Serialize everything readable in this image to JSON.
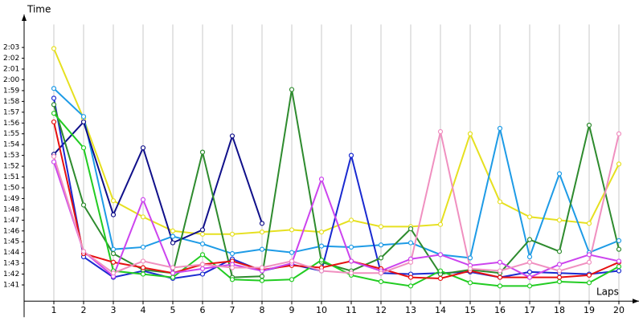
{
  "chart_data": {
    "type": "line",
    "y_label": "Time",
    "x_label": "Laps",
    "x": [
      1,
      2,
      3,
      4,
      5,
      6,
      7,
      8,
      9,
      10,
      11,
      12,
      13,
      14,
      15,
      16,
      17,
      18,
      19,
      20
    ],
    "xlim": [
      0,
      20.5
    ],
    "xticks": [
      1,
      2,
      3,
      4,
      5,
      6,
      7,
      8,
      9,
      10,
      11,
      12,
      13,
      14,
      15,
      16,
      17,
      18,
      19,
      20
    ],
    "ylim": [
      99.5,
      125.5
    ],
    "yticks": [
      {
        "value": 101,
        "label": "1:41"
      },
      {
        "value": 102,
        "label": "1:42"
      },
      {
        "value": 103,
        "label": "1:43"
      },
      {
        "value": 104,
        "label": "1:44"
      },
      {
        "value": 105,
        "label": "1:45"
      },
      {
        "value": 106,
        "label": "1:46"
      },
      {
        "value": 107,
        "label": "1:47"
      },
      {
        "value": 108,
        "label": "1:48"
      },
      {
        "value": 109,
        "label": "1:49"
      },
      {
        "value": 110,
        "label": "1:50"
      },
      {
        "value": 111,
        "label": "1:51"
      },
      {
        "value": 112,
        "label": "1:52"
      },
      {
        "value": 113,
        "label": "1:53"
      },
      {
        "value": 114,
        "label": "1:54"
      },
      {
        "value": 115,
        "label": "1:55"
      },
      {
        "value": 116,
        "label": "1:56"
      },
      {
        "value": 117,
        "label": "1:57"
      },
      {
        "value": 118,
        "label": "1:58"
      },
      {
        "value": 119,
        "label": "1:59"
      },
      {
        "value": 120,
        "label": "2:00"
      },
      {
        "value": 121,
        "label": "2:01"
      },
      {
        "value": 122,
        "label": "2:02"
      },
      {
        "value": 123,
        "label": "2:03"
      }
    ],
    "grid": "x",
    "series": [
      {
        "color": "#e6e020",
        "values": [
          122.9,
          116.4,
          108.8,
          107.3,
          106,
          105.7,
          105.7,
          105.9,
          106.1,
          105.9,
          107,
          106.4,
          106.4,
          106.6,
          115,
          108.7,
          107.3,
          107,
          106.7,
          112.2
        ]
      },
      {
        "color": "#1e9be6",
        "values": [
          119.2,
          116.6,
          104.3,
          104.5,
          105.5,
          104.8,
          103.9,
          104.3,
          104,
          104.6,
          104.5,
          104.7,
          104.9,
          103.8,
          103.5,
          115.5,
          103.6,
          111.3,
          104,
          105.1
        ]
      },
      {
        "color": "#10108a",
        "values": [
          113.1,
          116.1,
          107.5,
          113.7,
          104.9,
          106.1,
          114.8,
          106.7,
          null,
          null,
          null,
          null,
          null,
          null,
          null,
          null,
          null,
          null,
          null,
          null
        ]
      },
      {
        "color": "#1a2ad0",
        "values": [
          118.3,
          103.6,
          101.7,
          102.3,
          101.6,
          102,
          103.4,
          102.3,
          102.9,
          102.3,
          113,
          102.1,
          102,
          102.1,
          102.2,
          101.7,
          102.2,
          102.1,
          102,
          102.3
        ]
      },
      {
        "color": "#2e8b2e",
        "values": [
          117.7,
          108.4,
          103.9,
          102.4,
          102.1,
          113.3,
          101.7,
          101.8,
          119.1,
          103.1,
          102.3,
          103.5,
          106.2,
          102,
          102.4,
          102.1,
          105.2,
          104.1,
          115.8,
          104.3
        ]
      },
      {
        "color": "#22cc22",
        "values": [
          116.9,
          113.7,
          102.3,
          102,
          101.7,
          103.8,
          101.5,
          101.4,
          101.5,
          103.3,
          101.9,
          101.3,
          100.9,
          102.3,
          101.2,
          100.9,
          100.9,
          101.3,
          101.2,
          102.7
        ]
      },
      {
        "color": "#e61010",
        "values": [
          116.1,
          103.9,
          103.1,
          102.6,
          102.1,
          102.9,
          103.2,
          102.4,
          102.8,
          102.6,
          103.2,
          102.5,
          101.7,
          101.6,
          102.3,
          101.7,
          101.7,
          101.7,
          101.9,
          103.1
        ]
      },
      {
        "color": "#cc44ee",
        "values": [
          112.4,
          104.1,
          101.8,
          108.9,
          102.1,
          102.5,
          102.9,
          102.3,
          103,
          110.8,
          103.2,
          102.3,
          103.4,
          103.8,
          102.8,
          103.1,
          101.7,
          102.9,
          103.8,
          103.2
        ]
      },
      {
        "color": "#f090c0",
        "values": [
          112.9,
          104.1,
          102.1,
          103.2,
          102.6,
          102.9,
          102.6,
          102.6,
          103.2,
          102.3,
          102.1,
          102.1,
          103.1,
          115.2,
          102.5,
          102.3,
          103.1,
          102.3,
          103.1,
          115
        ]
      }
    ]
  }
}
